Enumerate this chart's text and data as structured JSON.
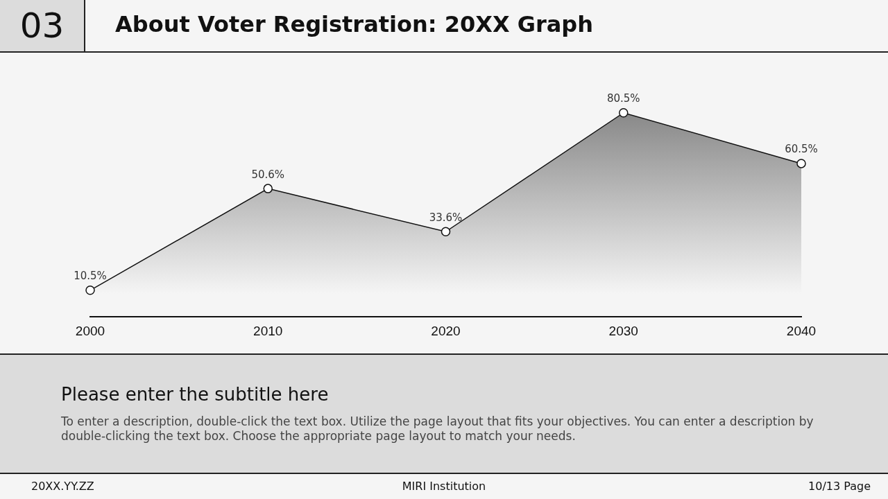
{
  "chart_data": {
    "type": "area",
    "title": "About Voter Registration: 20XX Graph",
    "subtitle": "Please enter the subtitle here",
    "annotations": [
      "03",
      "To enter a description, double-click the text box. Utilize the page layout that fits your objectives. You can enter a description by double-clicking the text box. Choose the appropriate page layout to match your needs.",
      "20XX.YY.ZZ",
      "MIRI Institution",
      "10/13 Page"
    ],
    "categories": [
      "2000",
      "2010",
      "2020",
      "2030",
      "2040"
    ],
    "series": [
      {
        "color": "#7a7a7a",
        "values": [
          10.5,
          50.6,
          33.6,
          80.5,
          60.5
        ],
        "value_labels": [
          "10.5%",
          "50.6%",
          "33.6%",
          "80.5%",
          "60.5%"
        ]
      }
    ],
    "tick_labels": "x",
    "marker": "circle",
    "grid": false,
    "legend": false
  }
}
